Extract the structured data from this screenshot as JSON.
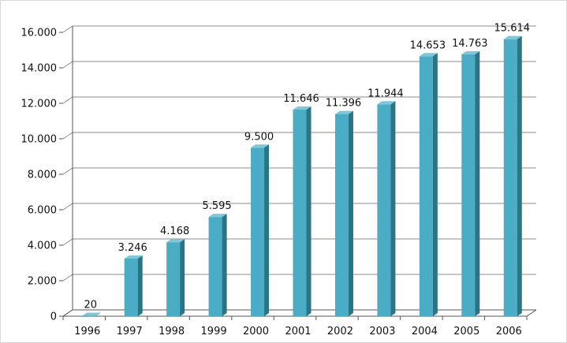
{
  "chart_data": {
    "type": "bar",
    "title": "",
    "xlabel": "",
    "ylabel": "",
    "categories": [
      "1996",
      "1997",
      "1998",
      "1999",
      "2000",
      "2001",
      "2002",
      "2003",
      "2004",
      "2005",
      "2006"
    ],
    "values": [
      20,
      3246,
      4168,
      5595,
      9500,
      11646,
      11396,
      11944,
      14653,
      14763,
      15614
    ],
    "value_labels": [
      "20",
      "3.246",
      "4.168",
      "5.595",
      "9.500",
      "11.646",
      "11.396",
      "11.944",
      "14.653",
      "14.763",
      "15.614"
    ],
    "ylim": [
      0,
      16000
    ],
    "yticks": [
      0,
      2000,
      4000,
      6000,
      8000,
      10000,
      12000,
      14000,
      16000
    ],
    "ytick_labels": [
      "0",
      "2.000",
      "4.000",
      "6.000",
      "8.000",
      "10.000",
      "12.000",
      "14.000",
      "16.000"
    ],
    "grid": true,
    "legend": "none",
    "colors": {
      "bar_front": "#4bacc6",
      "bar_side": "#2c7384",
      "bar_top": "#7fc6d8",
      "wall": "#ffffff",
      "grid": "#8c8c8c",
      "axis": "#555555"
    }
  }
}
